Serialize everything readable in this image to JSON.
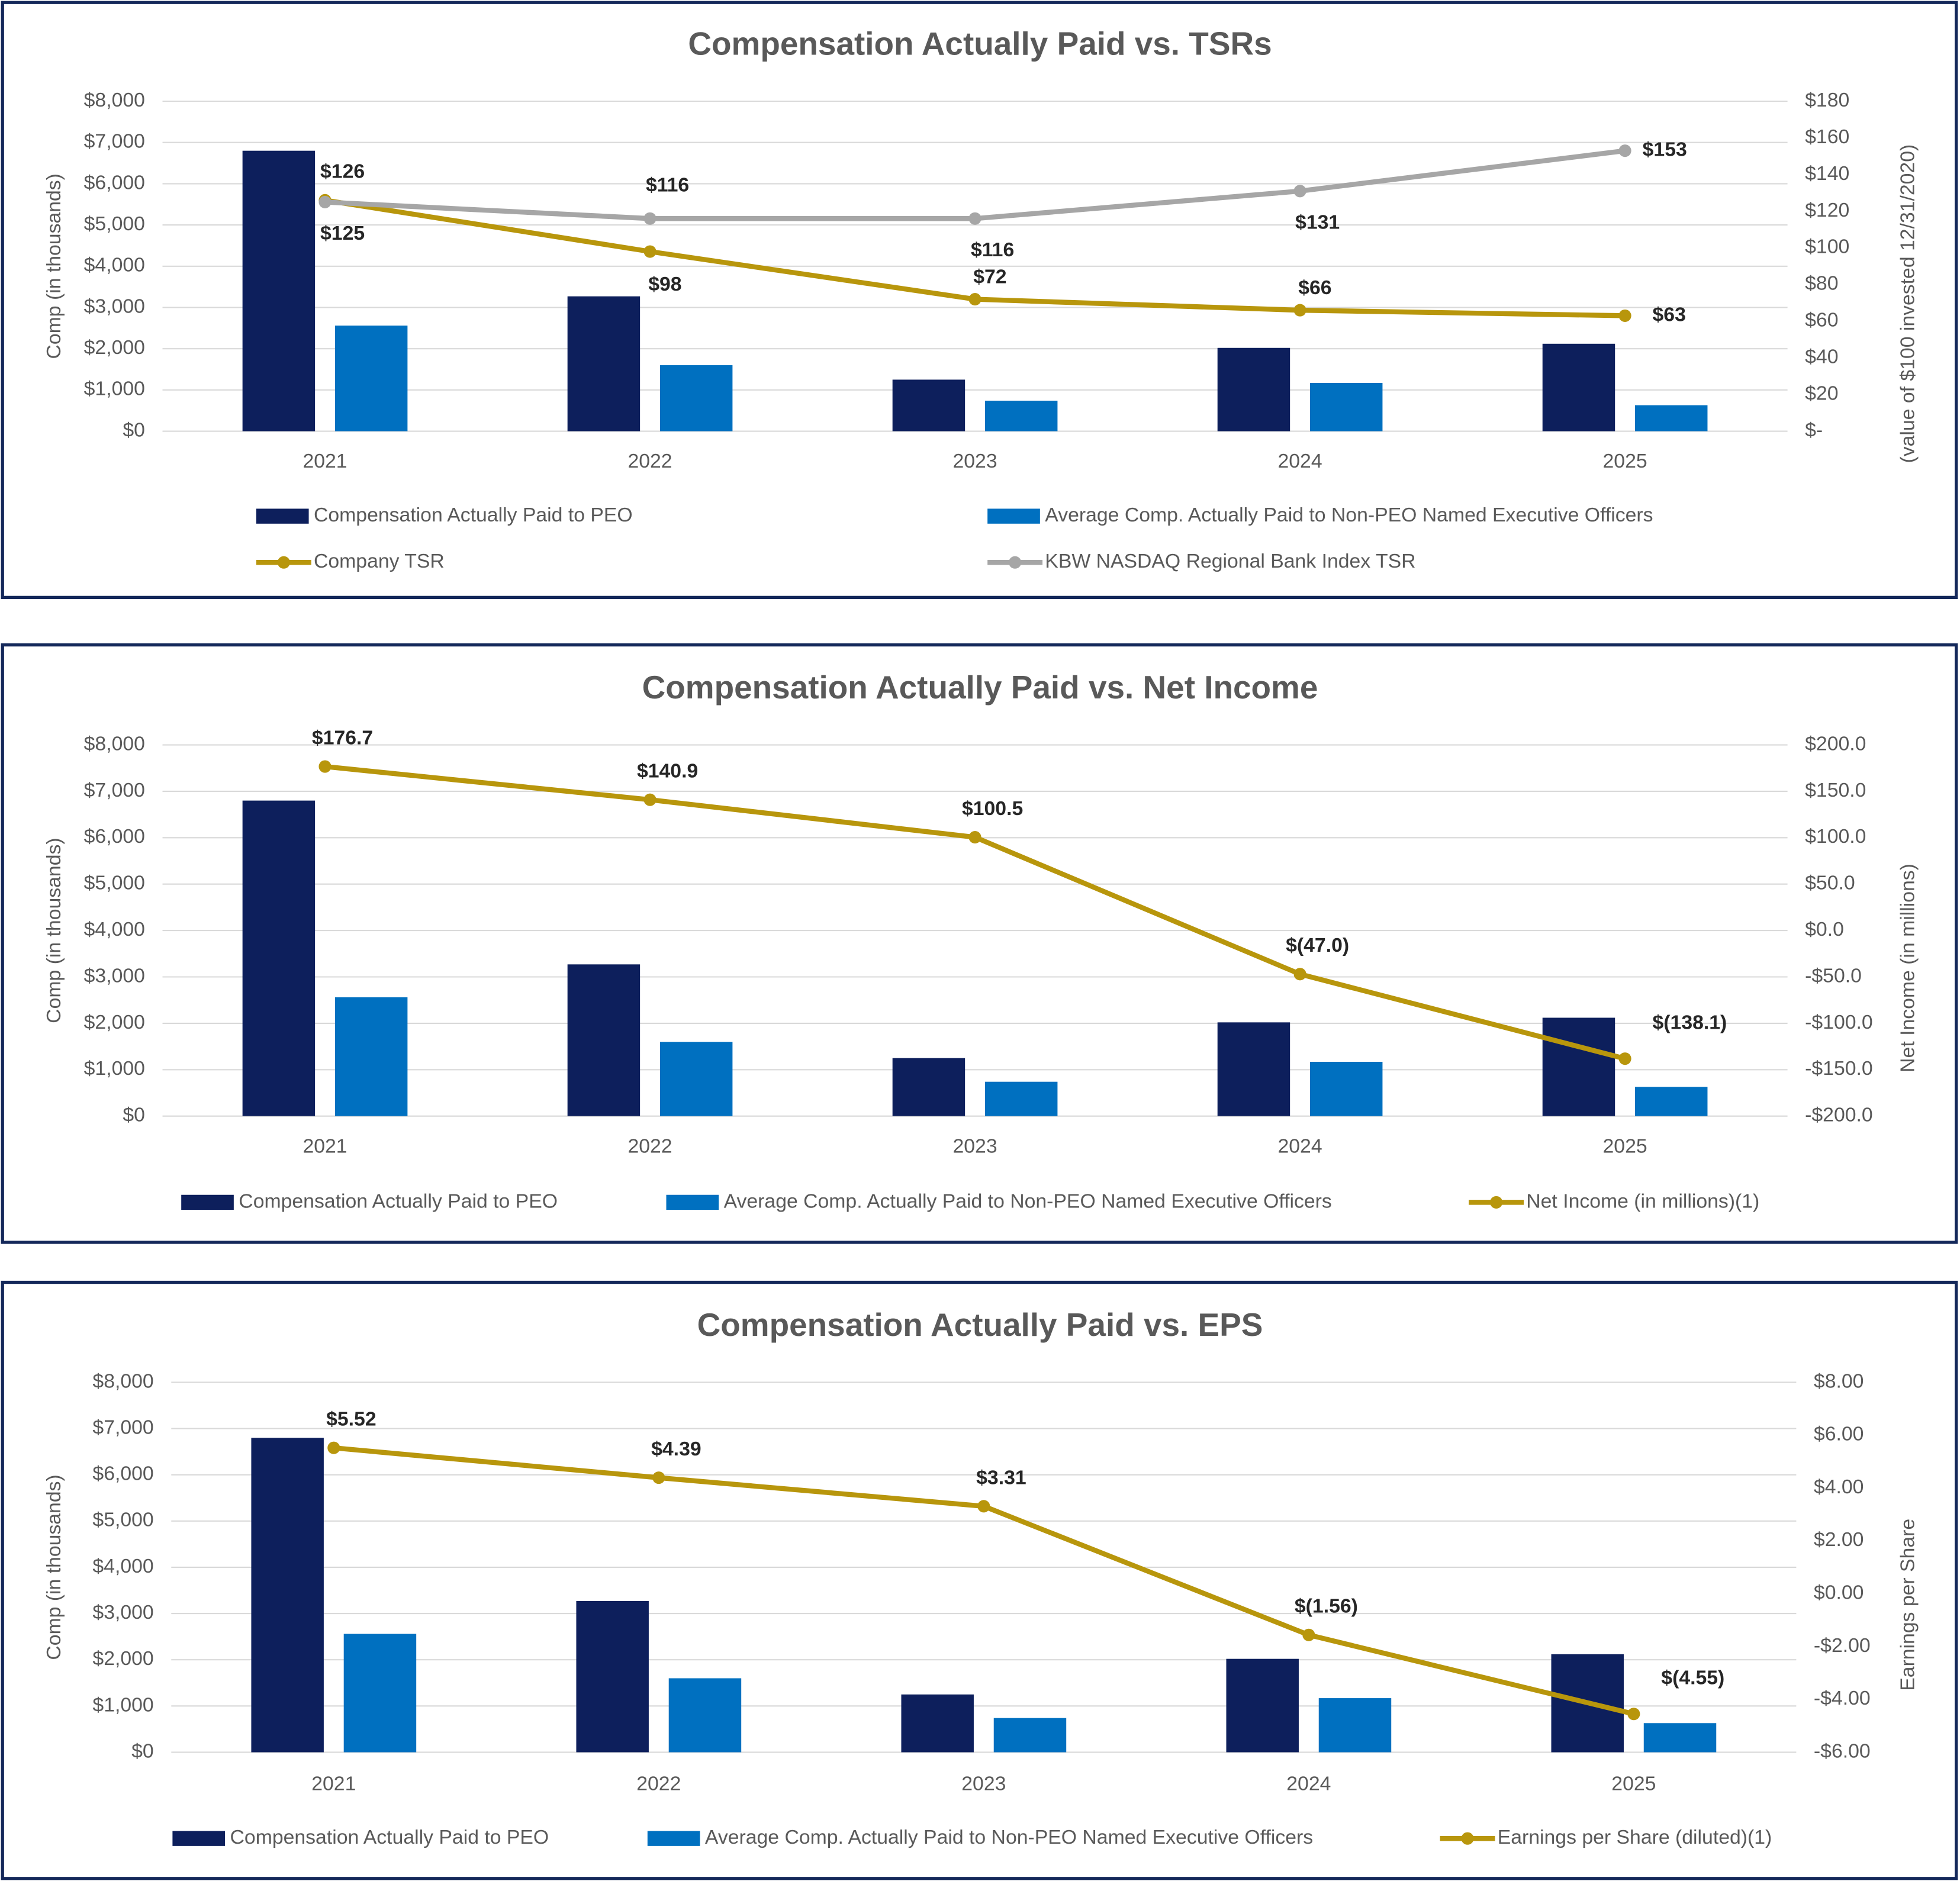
{
  "chart_data": [
    {
      "type": "combo",
      "title": "Compensation Actually Paid vs. TSRs",
      "categories": [
        "2021",
        "2022",
        "2023",
        "2024",
        "2025"
      ],
      "y_label": "Comp (in thousands)",
      "y2_label": "(value of $100 invested 12/31/2020)",
      "ylim": [
        0,
        8000
      ],
      "yticks": [
        {
          "value": 0,
          "label": "$0"
        },
        {
          "value": 1000,
          "label": "$1,000"
        },
        {
          "value": 2000,
          "label": "$2,000"
        },
        {
          "value": 3000,
          "label": "$3,000"
        },
        {
          "value": 4000,
          "label": "$4,000"
        },
        {
          "value": 5000,
          "label": "$5,000"
        },
        {
          "value": 6000,
          "label": "$6,000"
        },
        {
          "value": 7000,
          "label": "$7,000"
        },
        {
          "value": 8000,
          "label": "$8,000"
        }
      ],
      "y2lim": [
        0,
        180
      ],
      "y2ticks": [
        {
          "value": 0,
          "label": "$-"
        },
        {
          "value": 20,
          "label": "$20"
        },
        {
          "value": 40,
          "label": "$40"
        },
        {
          "value": 60,
          "label": "$60"
        },
        {
          "value": 80,
          "label": "$80"
        },
        {
          "value": 100,
          "label": "$100"
        },
        {
          "value": 120,
          "label": "$120"
        },
        {
          "value": 140,
          "label": "$140"
        },
        {
          "value": 160,
          "label": "$160"
        },
        {
          "value": 180,
          "label": "$180"
        }
      ],
      "grid": true,
      "series": [
        {
          "name": "Compensation Actually Paid to PEO",
          "color": "#0d1f5c",
          "values": [
            6800,
            3270,
            1250,
            2020,
            2120
          ]
        },
        {
          "name": "Average Comp. Actually Paid to Non-PEO Named Executive Officers",
          "color": "#0070c0",
          "values": [
            2560,
            1600,
            740,
            1170,
            630
          ]
        },
        {
          "name": "Company TSR",
          "color": "#b8960c",
          "axis": "y2",
          "values": [
            126,
            98,
            72,
            66,
            63
          ],
          "value_labels": [
            "$126",
            "$98",
            "$72",
            "$66",
            "$63"
          ]
        },
        {
          "name": "KBW NASDAQ Regional Bank Index TSR",
          "color": "#a6a6a6",
          "axis": "y2",
          "values": [
            125,
            116,
            116,
            131,
            153
          ],
          "value_labels": [
            "$125",
            "$116",
            "$116",
            "$131",
            "$153"
          ]
        }
      ]
    },
    {
      "type": "combo",
      "title": "Compensation Actually Paid vs. Net Income",
      "categories": [
        "2021",
        "2022",
        "2023",
        "2024",
        "2025"
      ],
      "y_label": "Comp (in thousands)",
      "y2_label": "Net Income (in millions)",
      "ylim": [
        0,
        8000
      ],
      "yticks": [
        {
          "value": 0,
          "label": "$0"
        },
        {
          "value": 1000,
          "label": "$1,000"
        },
        {
          "value": 2000,
          "label": "$2,000"
        },
        {
          "value": 3000,
          "label": "$3,000"
        },
        {
          "value": 4000,
          "label": "$4,000"
        },
        {
          "value": 5000,
          "label": "$5,000"
        },
        {
          "value": 6000,
          "label": "$6,000"
        },
        {
          "value": 7000,
          "label": "$7,000"
        },
        {
          "value": 8000,
          "label": "$8,000"
        }
      ],
      "y2lim": [
        -200,
        200
      ],
      "y2ticks": [
        {
          "value": -200,
          "label": "-$200.0"
        },
        {
          "value": -150,
          "label": "-$150.0"
        },
        {
          "value": -100,
          "label": "-$100.0"
        },
        {
          "value": -50,
          "label": "-$50.0"
        },
        {
          "value": 0,
          "label": "$0.0"
        },
        {
          "value": 50,
          "label": "$50.0"
        },
        {
          "value": 100,
          "label": "$100.0"
        },
        {
          "value": 150,
          "label": "$150.0"
        },
        {
          "value": 200,
          "label": "$200.0"
        }
      ],
      "grid": true,
      "series": [
        {
          "name": "Compensation Actually Paid to PEO",
          "color": "#0d1f5c",
          "values": [
            6800,
            3270,
            1250,
            2020,
            2120
          ]
        },
        {
          "name": "Average Comp. Actually Paid to Non-PEO Named Executive Officers",
          "color": "#0070c0",
          "values": [
            2560,
            1600,
            740,
            1170,
            630
          ]
        },
        {
          "name": "Net Income (in millions)(1)",
          "color": "#b8960c",
          "axis": "y2",
          "values": [
            176.7,
            140.9,
            100.5,
            -47.0,
            -138.1
          ],
          "value_labels": [
            "$176.7",
            "$140.9",
            "$100.5",
            "$(47.0)",
            "$(138.1)"
          ]
        }
      ]
    },
    {
      "type": "combo",
      "title": "Compensation Actually Paid vs. EPS",
      "categories": [
        "2021",
        "2022",
        "2023",
        "2024",
        "2025"
      ],
      "y_label": "Comp (in thousands)",
      "y2_label": "Earnings per Share",
      "ylim": [
        0,
        8000
      ],
      "yticks": [
        {
          "value": 0,
          "label": "$0"
        },
        {
          "value": 1000,
          "label": "$1,000"
        },
        {
          "value": 2000,
          "label": "$2,000"
        },
        {
          "value": 3000,
          "label": "$3,000"
        },
        {
          "value": 4000,
          "label": "$4,000"
        },
        {
          "value": 5000,
          "label": "$5,000"
        },
        {
          "value": 6000,
          "label": "$6,000"
        },
        {
          "value": 7000,
          "label": "$7,000"
        },
        {
          "value": 8000,
          "label": "$8,000"
        }
      ],
      "y2lim": [
        -6,
        8
      ],
      "y2ticks": [
        {
          "value": -6,
          "label": "-$6.00"
        },
        {
          "value": -4,
          "label": "-$4.00"
        },
        {
          "value": -2,
          "label": "-$2.00"
        },
        {
          "value": 0,
          "label": "$0.00"
        },
        {
          "value": 2,
          "label": "$2.00"
        },
        {
          "value": 4,
          "label": "$4.00"
        },
        {
          "value": 6,
          "label": "$6.00"
        },
        {
          "value": 8,
          "label": "$8.00"
        }
      ],
      "grid": true,
      "series": [
        {
          "name": "Compensation Actually Paid to PEO",
          "color": "#0d1f5c",
          "values": [
            6800,
            3270,
            1250,
            2020,
            2120
          ]
        },
        {
          "name": "Average Comp. Actually Paid to Non-PEO Named Executive Officers",
          "color": "#0070c0",
          "values": [
            2560,
            1600,
            740,
            1170,
            630
          ]
        },
        {
          "name": "Earnings per Share (diluted)(1)",
          "color": "#b8960c",
          "axis": "y2",
          "values": [
            5.52,
            4.39,
            3.31,
            -1.56,
            -4.55
          ],
          "value_labels": [
            "$5.52",
            "$4.39",
            "$3.31",
            "$(1.56)",
            "$(4.55)"
          ]
        }
      ]
    }
  ]
}
